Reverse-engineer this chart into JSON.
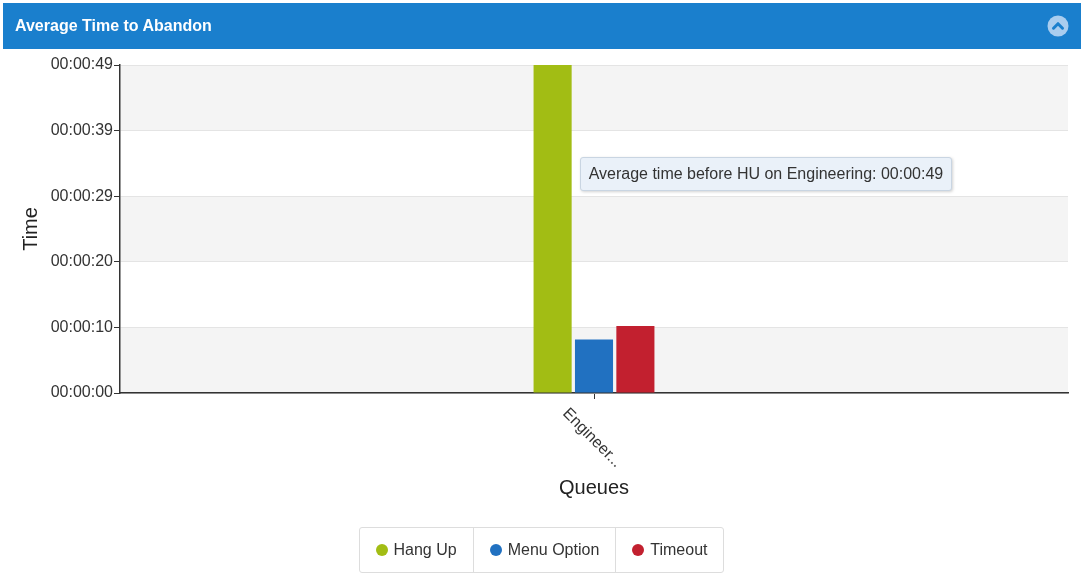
{
  "chart_data": {
    "type": "bar",
    "title": "Average Time to Abandon",
    "xlabel": "Queues",
    "ylabel": "Time",
    "categories": [
      "Engineer..."
    ],
    "series": [
      {
        "name": "Hang Up",
        "color": "#a2bd14",
        "values": [
          49
        ]
      },
      {
        "name": "Menu Option",
        "color": "#2171c1",
        "values": [
          8
        ]
      },
      {
        "name": "Timeout",
        "color": "#c2202f",
        "values": [
          10
        ]
      }
    ],
    "ylim": [
      0,
      49
    ],
    "yticks": [
      {
        "value": 0,
        "label": "00:00:00"
      },
      {
        "value": 9.8,
        "label": "00:00:10"
      },
      {
        "value": 19.6,
        "label": "00:00:20"
      },
      {
        "value": 29.4,
        "label": "00:00:29"
      },
      {
        "value": 39.2,
        "label": "00:00:39"
      },
      {
        "value": 49,
        "label": "00:00:49"
      }
    ],
    "grid": "y",
    "legend": "bottom",
    "annotations": [
      "Average time before HU on Engineering: 00:00:49"
    ]
  }
}
